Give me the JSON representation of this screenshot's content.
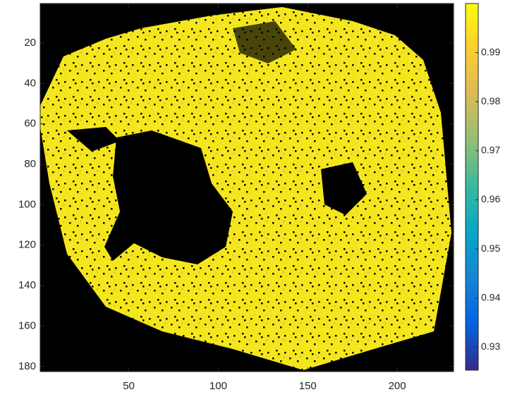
{
  "chart_data": {
    "type": "heatmap",
    "xlim": [
      0.5,
      231.5
    ],
    "ylim": [
      0.5,
      182.5
    ],
    "y_reversed": true,
    "xticks": [
      50,
      100,
      150,
      200
    ],
    "yticks": [
      20,
      40,
      60,
      80,
      100,
      120,
      140,
      160,
      180
    ],
    "colorbar": {
      "clim": [
        0.9253,
        1.0
      ],
      "ticks": [
        0.93,
        0.94,
        0.95,
        0.96,
        0.97,
        0.98,
        0.99
      ],
      "colormap": [
        "#352a87",
        "#0363e1",
        "#1485d4",
        "#06a7c6",
        "#38b99e",
        "#92bf73",
        "#d9ba56",
        "#fcce2e",
        "#f9fb0e"
      ]
    },
    "background_color": "#000000"
  }
}
